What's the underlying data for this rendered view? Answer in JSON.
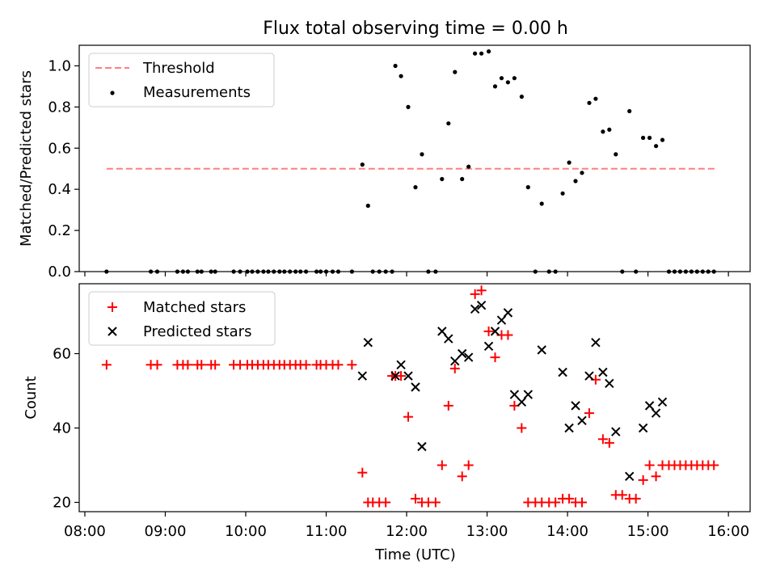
{
  "chart_data": [
    {
      "type": "scatter",
      "title": "Flux total observing time = 0.00 h",
      "xlabel": "",
      "ylabel": "Matched/Predicted stars",
      "xlim": [
        7.93,
        16.27
      ],
      "ylim": [
        0.0,
        1.1
      ],
      "yticks": [
        0.0,
        0.2,
        0.4,
        0.6,
        0.8,
        1.0
      ],
      "ytick_labels": [
        "0.0",
        "0.2",
        "0.4",
        "0.6",
        "0.8",
        "1.0"
      ],
      "legend": {
        "placement": "top-left",
        "entries": [
          "Threshold",
          "Measurements"
        ]
      },
      "threshold": {
        "name": "Threshold",
        "value": 0.5,
        "x_range": [
          8.27,
          15.85
        ],
        "color": "#ff7f7f"
      },
      "series": [
        {
          "name": "Measurements",
          "color": "#000000",
          "points": [
            [
              8.27,
              0
            ],
            [
              8.82,
              0
            ],
            [
              8.9,
              0
            ],
            [
              9.15,
              0
            ],
            [
              9.22,
              0
            ],
            [
              9.28,
              0
            ],
            [
              9.4,
              0
            ],
            [
              9.45,
              0
            ],
            [
              9.57,
              0
            ],
            [
              9.62,
              0
            ],
            [
              9.85,
              0
            ],
            [
              9.93,
              0
            ],
            [
              10.02,
              0
            ],
            [
              10.08,
              0
            ],
            [
              10.15,
              0
            ],
            [
              10.22,
              0
            ],
            [
              10.28,
              0
            ],
            [
              10.35,
              0
            ],
            [
              10.42,
              0
            ],
            [
              10.48,
              0
            ],
            [
              10.55,
              0
            ],
            [
              10.62,
              0
            ],
            [
              10.68,
              0
            ],
            [
              10.75,
              0
            ],
            [
              10.88,
              0
            ],
            [
              10.93,
              0
            ],
            [
              11.0,
              0
            ],
            [
              11.08,
              0
            ],
            [
              11.15,
              0
            ],
            [
              11.32,
              0
            ],
            [
              11.45,
              0.52
            ],
            [
              11.52,
              0.32
            ],
            [
              11.58,
              0
            ],
            [
              11.66,
              0
            ],
            [
              11.74,
              0
            ],
            [
              11.82,
              0
            ],
            [
              11.86,
              1.0
            ],
            [
              11.93,
              0.95
            ],
            [
              12.02,
              0.8
            ],
            [
              12.11,
              0.41
            ],
            [
              12.19,
              0.57
            ],
            [
              12.27,
              0
            ],
            [
              12.36,
              0
            ],
            [
              12.44,
              0.45
            ],
            [
              12.52,
              0.72
            ],
            [
              12.6,
              0.97
            ],
            [
              12.69,
              0.45
            ],
            [
              12.77,
              0.51
            ],
            [
              12.85,
              1.06
            ],
            [
              12.93,
              1.06
            ],
            [
              13.02,
              1.07
            ],
            [
              13.1,
              0.9
            ],
            [
              13.18,
              0.94
            ],
            [
              13.26,
              0.92
            ],
            [
              13.34,
              0.94
            ],
            [
              13.43,
              0.85
            ],
            [
              13.51,
              0.41
            ],
            [
              13.6,
              0
            ],
            [
              13.68,
              0.33
            ],
            [
              13.77,
              0
            ],
            [
              13.85,
              0
            ],
            [
              13.94,
              0.38
            ],
            [
              14.02,
              0.53
            ],
            [
              14.1,
              0.44
            ],
            [
              14.18,
              0.48
            ],
            [
              14.27,
              0.82
            ],
            [
              14.35,
              0.84
            ],
            [
              14.44,
              0.68
            ],
            [
              14.52,
              0.69
            ],
            [
              14.6,
              0.57
            ],
            [
              14.68,
              0
            ],
            [
              14.77,
              0.78
            ],
            [
              14.85,
              0
            ],
            [
              14.94,
              0.65
            ],
            [
              15.02,
              0.65
            ],
            [
              15.1,
              0.61
            ],
            [
              15.18,
              0.64
            ],
            [
              15.26,
              0
            ],
            [
              15.33,
              0
            ],
            [
              15.4,
              0
            ],
            [
              15.47,
              0
            ],
            [
              15.54,
              0
            ],
            [
              15.61,
              0
            ],
            [
              15.68,
              0
            ],
            [
              15.75,
              0
            ],
            [
              15.82,
              0
            ]
          ]
        }
      ]
    },
    {
      "type": "scatter",
      "title": "",
      "xlabel": "Time (UTC)",
      "ylabel": "Count",
      "xlim": [
        7.93,
        16.27
      ],
      "ylim": [
        17.5,
        78.8
      ],
      "yticks": [
        20,
        40,
        60
      ],
      "ytick_labels": [
        "20",
        "40",
        "60"
      ],
      "xticks": [
        8,
        9,
        10,
        11,
        12,
        13,
        14,
        15,
        16
      ],
      "xtick_labels": [
        "08:00",
        "09:00",
        "10:00",
        "11:00",
        "12:00",
        "13:00",
        "14:00",
        "15:00",
        "16:00"
      ],
      "legend": {
        "placement": "top-left",
        "entries": [
          "Matched stars",
          "Predicted stars"
        ]
      },
      "series": [
        {
          "name": "Matched stars",
          "marker": "plus",
          "color": "#ff0000",
          "points": [
            [
              8.27,
              57
            ],
            [
              8.82,
              57
            ],
            [
              8.9,
              57
            ],
            [
              9.15,
              57
            ],
            [
              9.22,
              57
            ],
            [
              9.28,
              57
            ],
            [
              9.4,
              57
            ],
            [
              9.45,
              57
            ],
            [
              9.57,
              57
            ],
            [
              9.62,
              57
            ],
            [
              9.85,
              57
            ],
            [
              9.93,
              57
            ],
            [
              10.02,
              57
            ],
            [
              10.08,
              57
            ],
            [
              10.15,
              57
            ],
            [
              10.22,
              57
            ],
            [
              10.28,
              57
            ],
            [
              10.35,
              57
            ],
            [
              10.42,
              57
            ],
            [
              10.48,
              57
            ],
            [
              10.55,
              57
            ],
            [
              10.62,
              57
            ],
            [
              10.68,
              57
            ],
            [
              10.75,
              57
            ],
            [
              10.88,
              57
            ],
            [
              10.93,
              57
            ],
            [
              11.0,
              57
            ],
            [
              11.08,
              57
            ],
            [
              11.15,
              57
            ],
            [
              11.32,
              57
            ],
            [
              11.45,
              28
            ],
            [
              11.52,
              20
            ],
            [
              11.58,
              20
            ],
            [
              11.66,
              20
            ],
            [
              11.74,
              20
            ],
            [
              11.82,
              54
            ],
            [
              11.86,
              54
            ],
            [
              11.93,
              54
            ],
            [
              12.02,
              43
            ],
            [
              12.11,
              21
            ],
            [
              12.19,
              20
            ],
            [
              12.27,
              20
            ],
            [
              12.36,
              20
            ],
            [
              12.44,
              30
            ],
            [
              12.52,
              46
            ],
            [
              12.6,
              56
            ],
            [
              12.69,
              27
            ],
            [
              12.77,
              30
            ],
            [
              12.85,
              76
            ],
            [
              12.93,
              77
            ],
            [
              13.02,
              66
            ],
            [
              13.1,
              59
            ],
            [
              13.18,
              65
            ],
            [
              13.26,
              65
            ],
            [
              13.34,
              46
            ],
            [
              13.43,
              40
            ],
            [
              13.51,
              20
            ],
            [
              13.6,
              20
            ],
            [
              13.68,
              20
            ],
            [
              13.77,
              20
            ],
            [
              13.85,
              20
            ],
            [
              13.94,
              21
            ],
            [
              14.02,
              21
            ],
            [
              14.1,
              20
            ],
            [
              14.18,
              20
            ],
            [
              14.27,
              44
            ],
            [
              14.35,
              53
            ],
            [
              14.44,
              37
            ],
            [
              14.52,
              36
            ],
            [
              14.6,
              22
            ],
            [
              14.68,
              22
            ],
            [
              14.77,
              21
            ],
            [
              14.85,
              21
            ],
            [
              14.94,
              26
            ],
            [
              15.02,
              30
            ],
            [
              15.1,
              27
            ],
            [
              15.18,
              30
            ],
            [
              15.26,
              30
            ],
            [
              15.33,
              30
            ],
            [
              15.4,
              30
            ],
            [
              15.47,
              30
            ],
            [
              15.54,
              30
            ],
            [
              15.61,
              30
            ],
            [
              15.68,
              30
            ],
            [
              15.75,
              30
            ],
            [
              15.82,
              30
            ]
          ]
        },
        {
          "name": "Predicted stars",
          "marker": "x",
          "color": "#000000",
          "points": [
            [
              11.45,
              54
            ],
            [
              11.52,
              63
            ],
            [
              11.86,
              54
            ],
            [
              11.93,
              57
            ],
            [
              12.02,
              54
            ],
            [
              12.11,
              51
            ],
            [
              12.19,
              35
            ],
            [
              12.44,
              66
            ],
            [
              12.52,
              64
            ],
            [
              12.6,
              58
            ],
            [
              12.69,
              60
            ],
            [
              12.77,
              59
            ],
            [
              12.85,
              72
            ],
            [
              12.93,
              73
            ],
            [
              13.02,
              62
            ],
            [
              13.1,
              66
            ],
            [
              13.18,
              69
            ],
            [
              13.26,
              71
            ],
            [
              13.34,
              49
            ],
            [
              13.43,
              47
            ],
            [
              13.51,
              49
            ],
            [
              13.68,
              61
            ],
            [
              13.94,
              55
            ],
            [
              14.02,
              40
            ],
            [
              14.1,
              46
            ],
            [
              14.18,
              42
            ],
            [
              14.27,
              54
            ],
            [
              14.35,
              63
            ],
            [
              14.44,
              55
            ],
            [
              14.52,
              52
            ],
            [
              14.6,
              39
            ],
            [
              14.77,
              27
            ],
            [
              14.94,
              40
            ],
            [
              15.02,
              46
            ],
            [
              15.1,
              44
            ],
            [
              15.18,
              47
            ]
          ]
        }
      ]
    }
  ]
}
